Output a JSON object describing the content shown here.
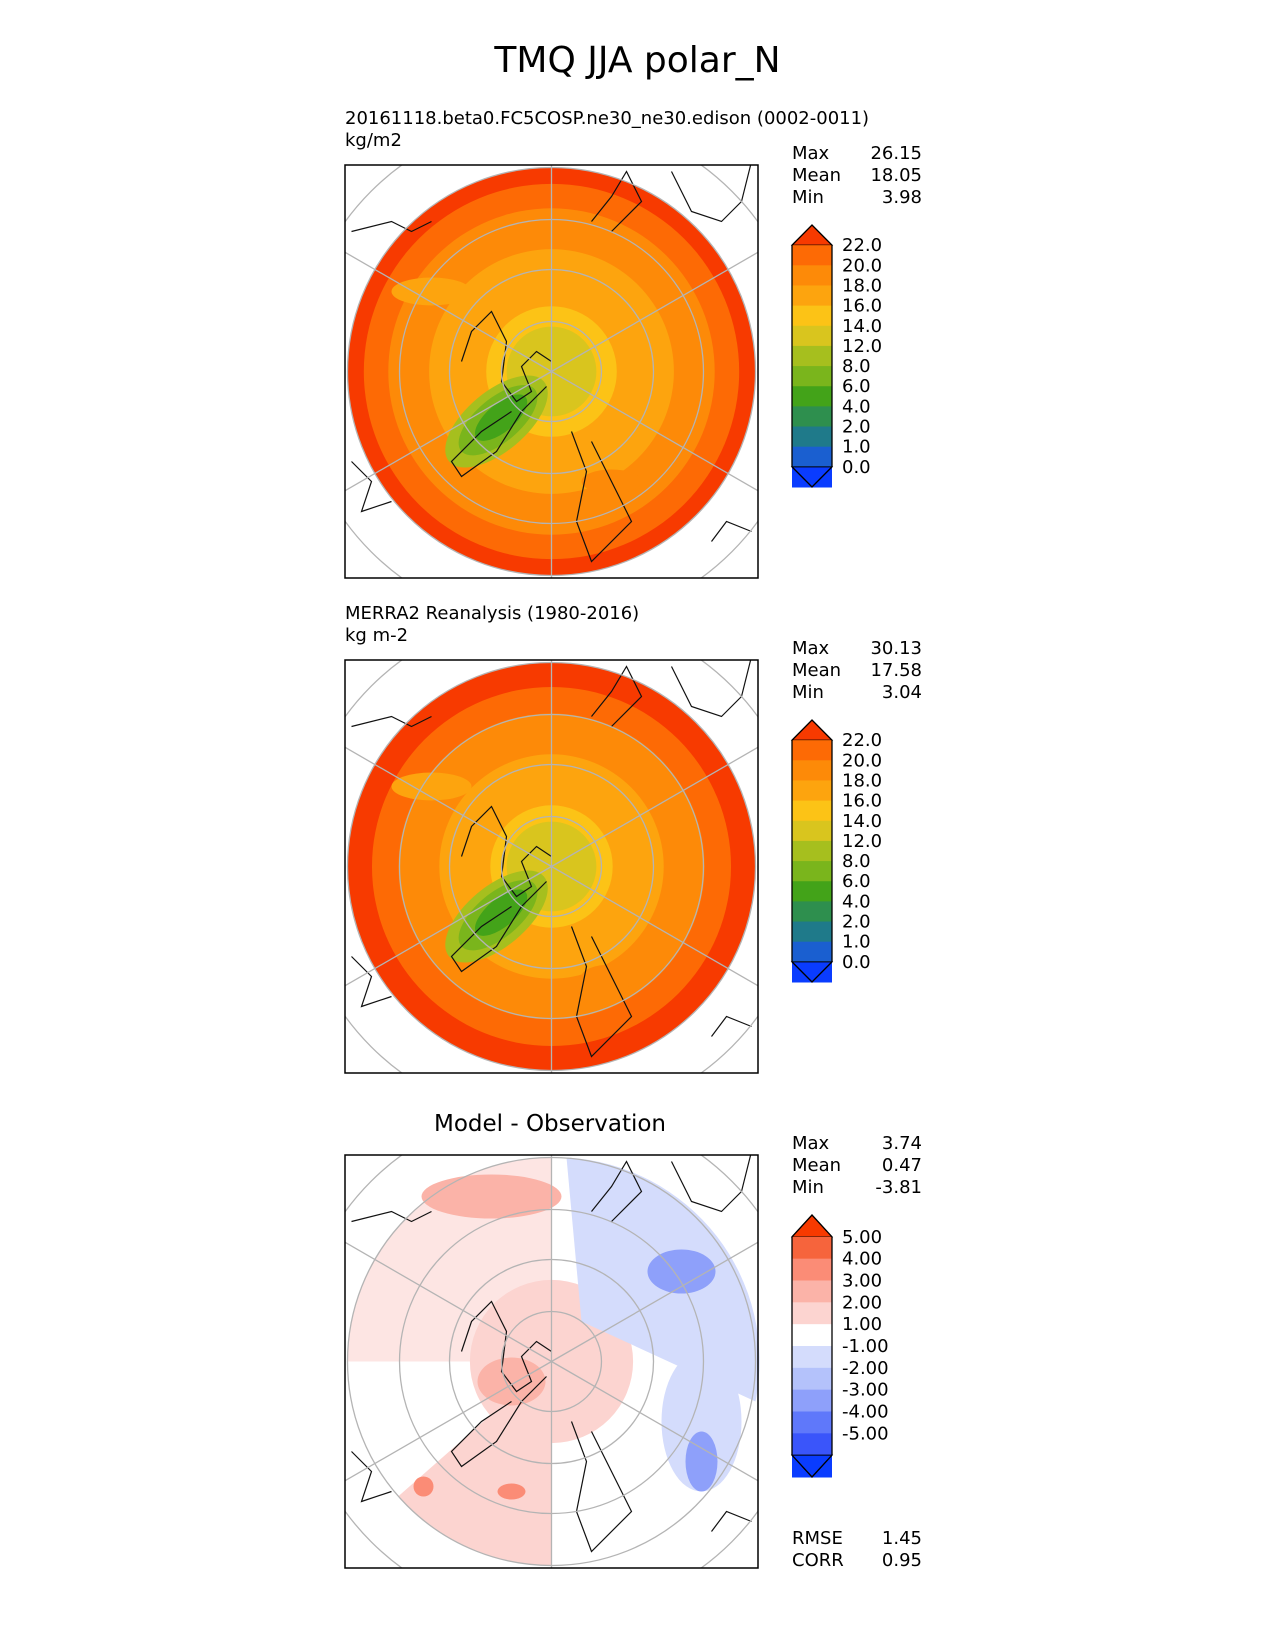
{
  "figure_title": "TMQ JJA polar_N",
  "colors": {
    "field": [
      "#0a3cff",
      "#1a5fd0",
      "#1f7a8a",
      "#2e8f4e",
      "#43a319",
      "#7ab51c",
      "#a6bf1e",
      "#d9c51e",
      "#fcc316",
      "#fda40e",
      "#fd8a08",
      "#fd6a05",
      "#f73a00"
    ],
    "diff": [
      "#0a3cff",
      "#3a55fa",
      "#5f78fa",
      "#8ea0fa",
      "#b4c2fb",
      "#d4dcfc",
      "#ffffff",
      "#fcd4d0",
      "#fbb3a8",
      "#fb8c76",
      "#f6643c",
      "#f73a00"
    ]
  },
  "chart_data": [
    {
      "type": "heatmap",
      "panel": "top",
      "title": "20161118.beta0.FC5COSP.ne30_ne30.edison (0002-0011)",
      "units": "kg/m2",
      "projection": "north-polar-stereographic",
      "stats": {
        "max": "26.15",
        "mean": "18.05",
        "min": "3.98"
      },
      "colorbar": {
        "ticks": [
          "22.0",
          "20.0",
          "18.0",
          "16.0",
          "14.0",
          "12.0",
          "8.0",
          "6.0",
          "4.0",
          "2.0",
          "1.0",
          "0.0"
        ],
        "extend": "both"
      },
      "rings": [
        {
          "level": 12,
          "rel_radius": 0.0
        },
        {
          "level": 14,
          "rel_radius": 0.32
        },
        {
          "level": 16,
          "rel_radius": 0.6
        },
        {
          "level": 18,
          "rel_radius": 0.8
        },
        {
          "level": 20,
          "rel_radius": 0.92
        },
        {
          "level": 22,
          "rel_radius": 1.0
        }
      ]
    },
    {
      "type": "heatmap",
      "panel": "middle",
      "title": "MERRA2 Reanalysis (1980-2016)",
      "units": "kg m-2",
      "projection": "north-polar-stereographic",
      "stats": {
        "max": "30.13",
        "mean": "17.58",
        "min": "3.04"
      },
      "colorbar": {
        "ticks": [
          "22.0",
          "20.0",
          "18.0",
          "16.0",
          "14.0",
          "12.0",
          "8.0",
          "6.0",
          "4.0",
          "2.0",
          "1.0",
          "0.0"
        ],
        "extend": "both"
      },
      "rings": [
        {
          "level": 12,
          "rel_radius": 0.0
        },
        {
          "level": 14,
          "rel_radius": 0.3
        },
        {
          "level": 16,
          "rel_radius": 0.55
        },
        {
          "level": 18,
          "rel_radius": 0.75
        },
        {
          "level": 20,
          "rel_radius": 0.88
        },
        {
          "level": 22,
          "rel_radius": 1.0
        }
      ]
    },
    {
      "type": "heatmap",
      "panel": "bottom",
      "title": "Model - Observation",
      "projection": "north-polar-stereographic",
      "stats": {
        "max": "3.74",
        "mean": "0.47",
        "min": "-3.81"
      },
      "metrics": {
        "rmse_label": "RMSE",
        "rmse": "1.45",
        "corr_label": "CORR",
        "corr": "0.95"
      },
      "colorbar": {
        "ticks": [
          "5.00",
          "4.00",
          "3.00",
          "2.00",
          "1.00",
          "-1.00",
          "-2.00",
          "-3.00",
          "-4.00",
          "-5.00"
        ],
        "extend": "both"
      }
    }
  ]
}
